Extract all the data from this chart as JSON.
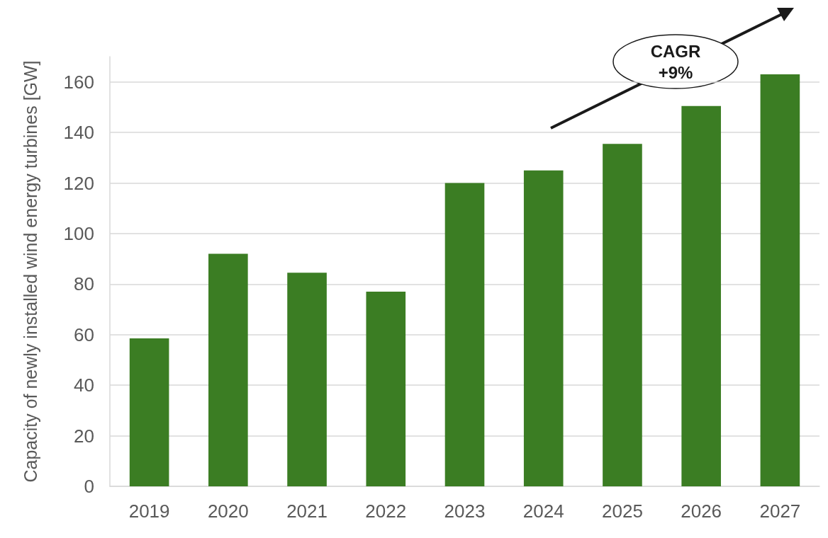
{
  "chart_data": {
    "type": "bar",
    "ylabel": "Capacity of newly installed wind energy turbines [GW]",
    "categories": [
      "2019",
      "2020",
      "2021",
      "2022",
      "2023",
      "2024",
      "2025",
      "2026",
      "2027"
    ],
    "values": [
      58.5,
      92,
      84.5,
      77,
      120,
      125,
      135.5,
      150.5,
      163
    ],
    "color": "#3b7d23",
    "ylim": [
      0,
      170
    ],
    "yticks": [
      0,
      20,
      40,
      60,
      80,
      100,
      120,
      140,
      160
    ],
    "grid": "y",
    "annotations": [
      "CAGR\n+9%"
    ]
  }
}
